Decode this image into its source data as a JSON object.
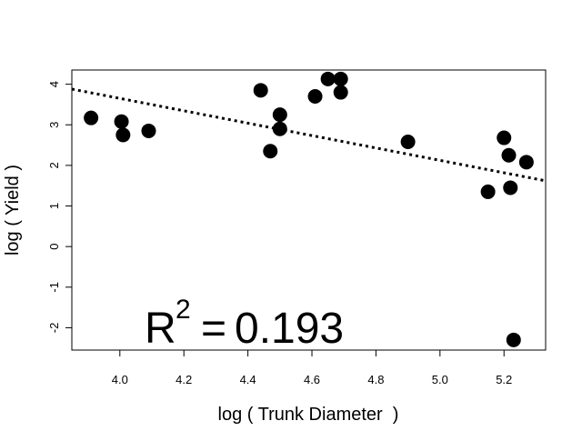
{
  "chart_data": {
    "type": "scatter",
    "xlabel": "log ( Trunk Diameter  )",
    "ylabel": "log ( Yield )",
    "xlim": [
      3.85,
      5.33
    ],
    "ylim": [
      -2.55,
      4.35
    ],
    "x_ticks": [
      4.0,
      4.2,
      4.4,
      4.6,
      4.8,
      5.0,
      5.2
    ],
    "x_tick_labels": [
      "4.0",
      "4.2",
      "4.4",
      "4.6",
      "4.8",
      "5.0",
      "5.2"
    ],
    "y_ticks": [
      -2,
      -1,
      0,
      1,
      2,
      3,
      4
    ],
    "y_tick_labels": [
      "-2",
      "-1",
      "0",
      "1",
      "2",
      "3",
      "4"
    ],
    "grid": false,
    "annotation": {
      "r_letter": "R",
      "exponent": "2",
      "equals": "=",
      "value": "0.193"
    },
    "trend_line": {
      "style": "dotted",
      "x": [
        3.85,
        5.33
      ],
      "y": [
        3.88,
        1.62
      ]
    },
    "points": [
      {
        "x": 3.91,
        "y": 3.17
      },
      {
        "x": 4.005,
        "y": 3.08
      },
      {
        "x": 4.01,
        "y": 2.75
      },
      {
        "x": 4.09,
        "y": 2.85
      },
      {
        "x": 4.44,
        "y": 3.85
      },
      {
        "x": 4.47,
        "y": 2.35
      },
      {
        "x": 4.5,
        "y": 3.25
      },
      {
        "x": 4.5,
        "y": 2.9
      },
      {
        "x": 4.61,
        "y": 3.7
      },
      {
        "x": 4.65,
        "y": 4.13
      },
      {
        "x": 4.69,
        "y": 4.13
      },
      {
        "x": 4.69,
        "y": 3.8
      },
      {
        "x": 4.9,
        "y": 2.58
      },
      {
        "x": 5.15,
        "y": 1.35
      },
      {
        "x": 5.2,
        "y": 2.68
      },
      {
        "x": 5.215,
        "y": 2.25
      },
      {
        "x": 5.22,
        "y": 1.45
      },
      {
        "x": 5.23,
        "y": -2.3
      },
      {
        "x": 5.27,
        "y": 2.08
      }
    ],
    "colors": {
      "points": "#000000",
      "line": "#000000",
      "axis": "#000000"
    }
  }
}
